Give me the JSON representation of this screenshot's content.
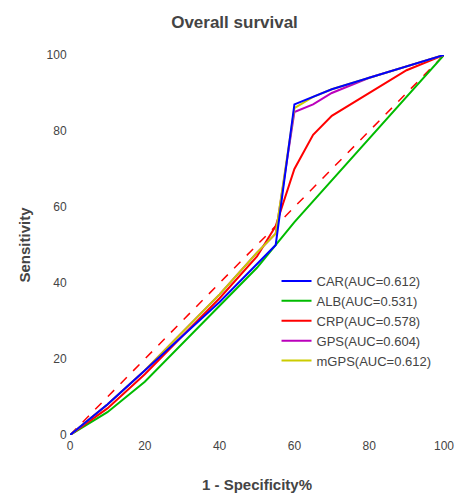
{
  "chart_data": {
    "type": "line",
    "title": "Overall survival",
    "xlabel": "1 - Specificity%",
    "ylabel": "Sensitivity",
    "xlim": [
      0,
      100
    ],
    "ylim": [
      0,
      100
    ],
    "xticks": [
      0,
      20,
      40,
      60,
      80,
      100
    ],
    "yticks": [
      0,
      20,
      40,
      60,
      80,
      100
    ],
    "grid": false,
    "legend": "lower right",
    "reference_line": {
      "x": [
        0,
        100
      ],
      "y": [
        0,
        100
      ],
      "color": "#FF0000",
      "line_style": "dashed"
    },
    "series": [
      {
        "name": "CAR(AUC=0.612)",
        "color": "#0000FF",
        "x": [
          0,
          10,
          20,
          30,
          40,
          50,
          55,
          60,
          65,
          70,
          80,
          90,
          100
        ],
        "values": [
          0,
          8,
          17,
          26,
          35,
          45,
          50,
          87,
          89,
          91,
          94,
          97,
          100
        ]
      },
      {
        "name": "ALB(AUC=0.531)",
        "color": "#00BB00",
        "x": [
          0,
          10,
          20,
          30,
          40,
          50,
          60,
          70,
          80,
          90,
          100
        ],
        "values": [
          0,
          6,
          14,
          24,
          34,
          44,
          56,
          67,
          78,
          89,
          100
        ]
      },
      {
        "name": "CRP(AUC=0.578)",
        "color": "#FF0000",
        "x": [
          0,
          10,
          20,
          30,
          40,
          50,
          55,
          60,
          65,
          70,
          80,
          90,
          100
        ],
        "values": [
          0,
          7,
          16,
          26,
          36,
          47,
          55,
          70,
          79,
          84,
          90,
          96,
          100
        ]
      },
      {
        "name": "GPS(AUC=0.604)",
        "color": "#BB00BB",
        "x": [
          0,
          10,
          20,
          30,
          40,
          50,
          55,
          60,
          65,
          70,
          80,
          90,
          100
        ],
        "values": [
          0,
          8,
          17,
          27,
          37,
          48,
          53,
          85,
          87,
          90,
          94,
          97,
          100
        ]
      },
      {
        "name": "mGPS(AUC=0.612)",
        "color": "#CCCC00",
        "x": [
          0,
          10,
          20,
          30,
          40,
          50,
          55,
          60,
          65,
          70,
          80,
          90,
          100
        ],
        "values": [
          0,
          8,
          17,
          27,
          37,
          48,
          53,
          86,
          89,
          91,
          94,
          97,
          100
        ]
      }
    ]
  }
}
